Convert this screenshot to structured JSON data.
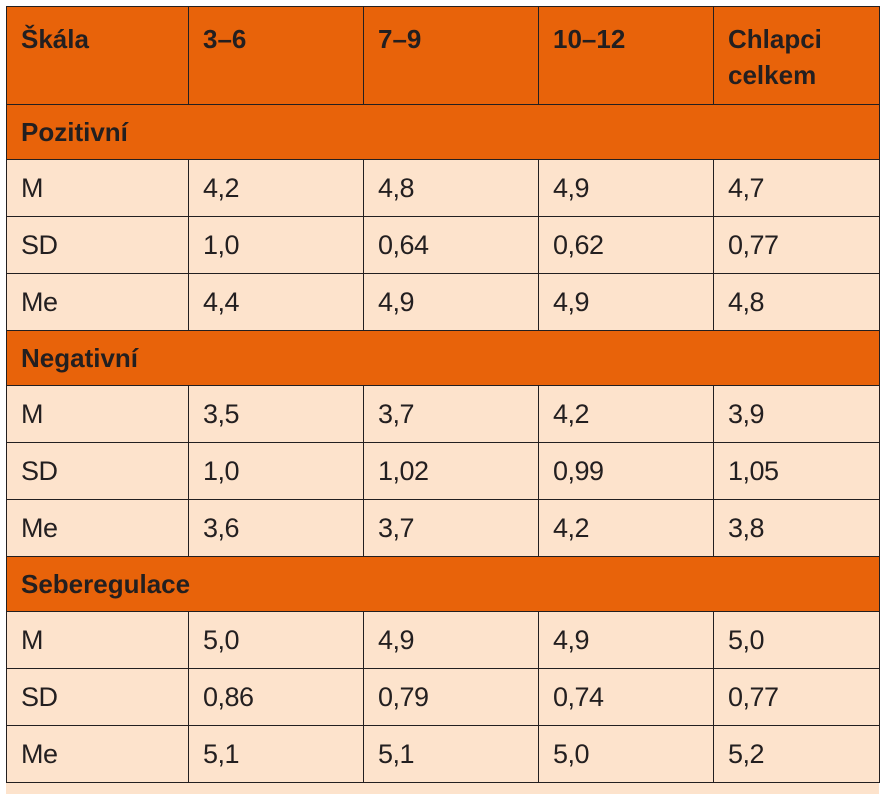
{
  "table": {
    "headers": [
      "Škála",
      "3–6",
      "7–9",
      "10–12",
      "Chlapci celkem"
    ],
    "sections": [
      {
        "name": "Pozitivní",
        "rows": [
          {
            "label": "M",
            "values": [
              "4,2",
              "4,8",
              "4,9",
              "4,7"
            ]
          },
          {
            "label": "SD",
            "values": [
              "1,0",
              "0,64",
              "0,62",
              "0,77"
            ]
          },
          {
            "label": "Me",
            "values": [
              "4,4",
              "4,9",
              "4,9",
              "4,8"
            ]
          }
        ]
      },
      {
        "name": "Negativní",
        "rows": [
          {
            "label": "M",
            "values": [
              "3,5",
              "3,7",
              "4,2",
              "3,9"
            ]
          },
          {
            "label": "SD",
            "values": [
              "1,0",
              "1,02",
              "0,99",
              "1,05"
            ]
          },
          {
            "label": "Me",
            "values": [
              "3,6",
              "3,7",
              "4,2",
              "3,8"
            ]
          }
        ]
      },
      {
        "name": "Seberegulace",
        "rows": [
          {
            "label": "M",
            "values": [
              "5,0",
              "4,9",
              "4,9",
              "5,0"
            ]
          },
          {
            "label": "SD",
            "values": [
              "0,86",
              "0,79",
              "0,74",
              "0,77"
            ]
          },
          {
            "label": "Me",
            "values": [
              "5,1",
              "5,1",
              "5,0",
              "5,2"
            ]
          }
        ]
      }
    ]
  }
}
